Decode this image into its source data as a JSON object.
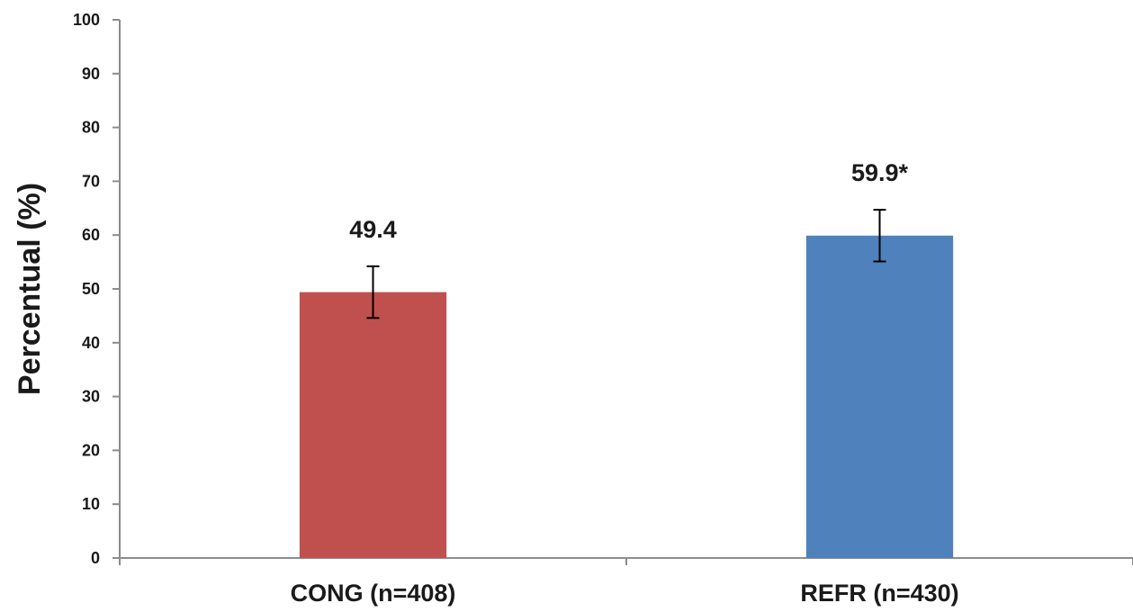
{
  "chart_data": {
    "type": "bar",
    "categories": [
      "CONG (n=408)",
      "REFR (n=430)"
    ],
    "values": [
      49.4,
      59.9
    ],
    "error_low": [
      44.6,
      55.1
    ],
    "error_high": [
      54.2,
      64.7
    ],
    "data_labels": [
      "49.4",
      "59.9*"
    ],
    "bar_colors": [
      "#c0504d",
      "#4f81bd"
    ],
    "title": "",
    "xlabel": "",
    "ylabel": "Percentual (%)",
    "ylim": [
      0,
      100
    ],
    "yticks": [
      0,
      10,
      20,
      30,
      40,
      50,
      60,
      70,
      80,
      90,
      100
    ],
    "grid": false,
    "legend": "none"
  }
}
